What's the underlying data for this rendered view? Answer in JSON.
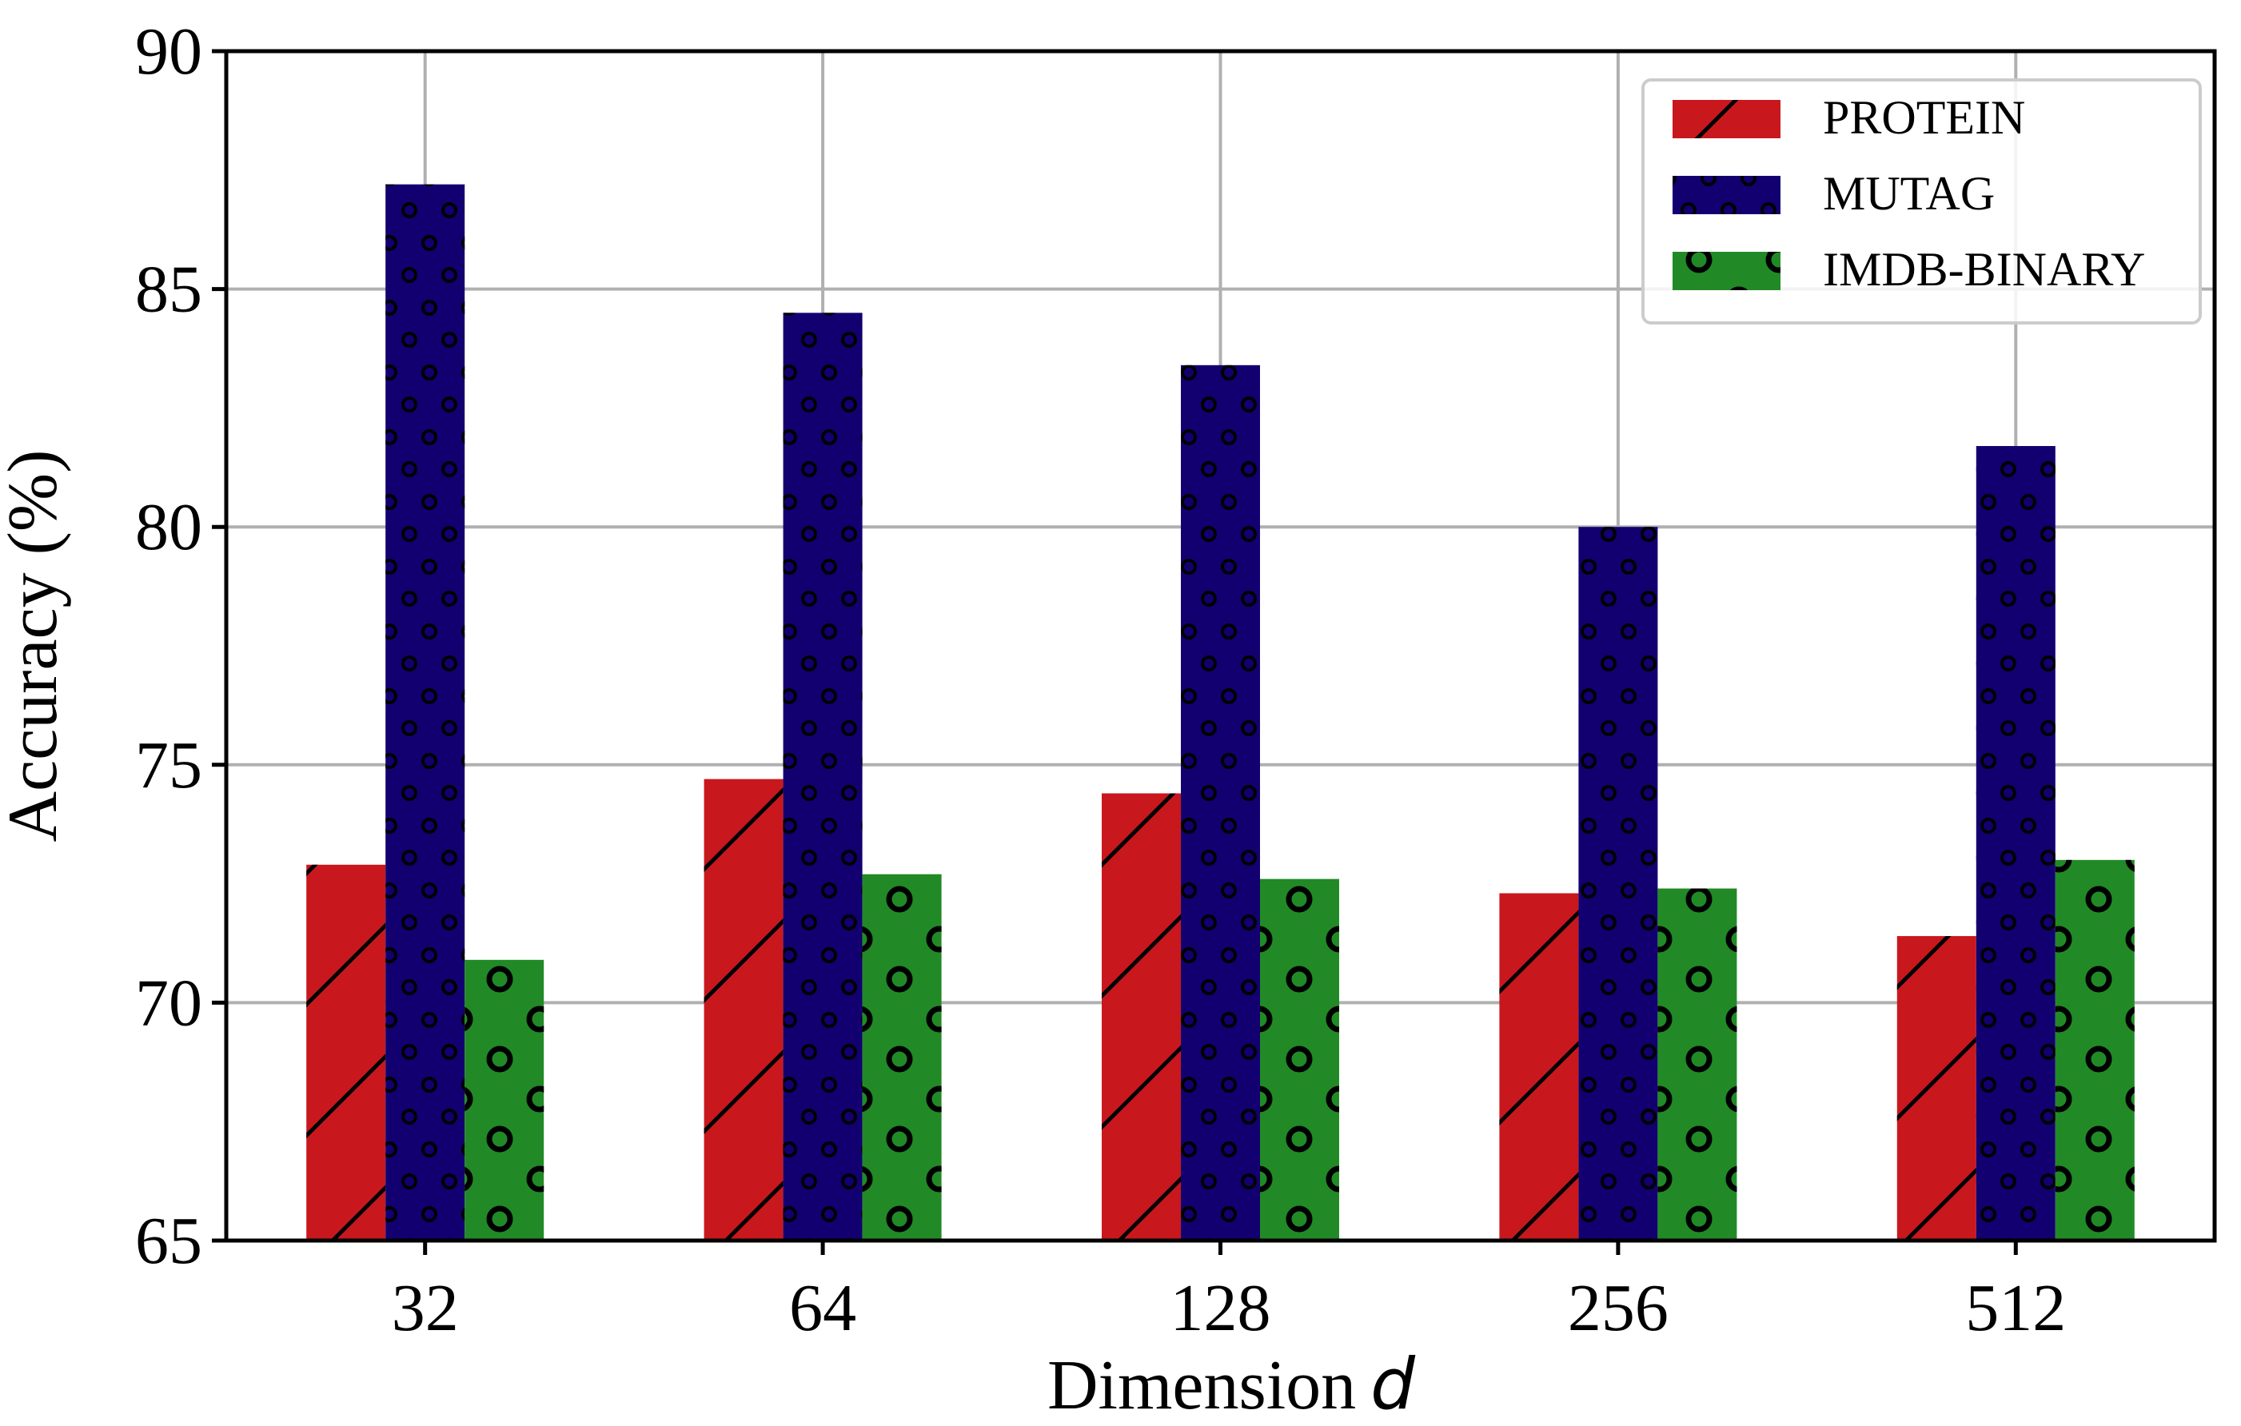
{
  "chart_data": {
    "type": "bar",
    "categories": [
      "32",
      "64",
      "128",
      "256",
      "512"
    ],
    "series": [
      {
        "name": "PROTEIN",
        "values": [
          72.9,
          74.7,
          74.4,
          72.3,
          71.4
        ],
        "color": "#c8181e",
        "pattern": "diagonal-hatch"
      },
      {
        "name": "MUTAG",
        "values": [
          87.2,
          84.5,
          83.4,
          80.0,
          81.7
        ],
        "color": "#120070",
        "pattern": "small-dots"
      },
      {
        "name": "IMDB-BINARY",
        "values": [
          70.9,
          72.7,
          72.6,
          72.4,
          73.0
        ],
        "color": "#218a26",
        "pattern": "large-rings"
      }
    ],
    "title": "",
    "xlabel": "Dimension",
    "xlabel_var": "d",
    "ylabel": "Accuracy (%)",
    "ylim": [
      65,
      90
    ],
    "yticks": [
      65,
      70,
      75,
      80,
      85,
      90
    ],
    "grid": true,
    "legend_position": "top-right"
  }
}
